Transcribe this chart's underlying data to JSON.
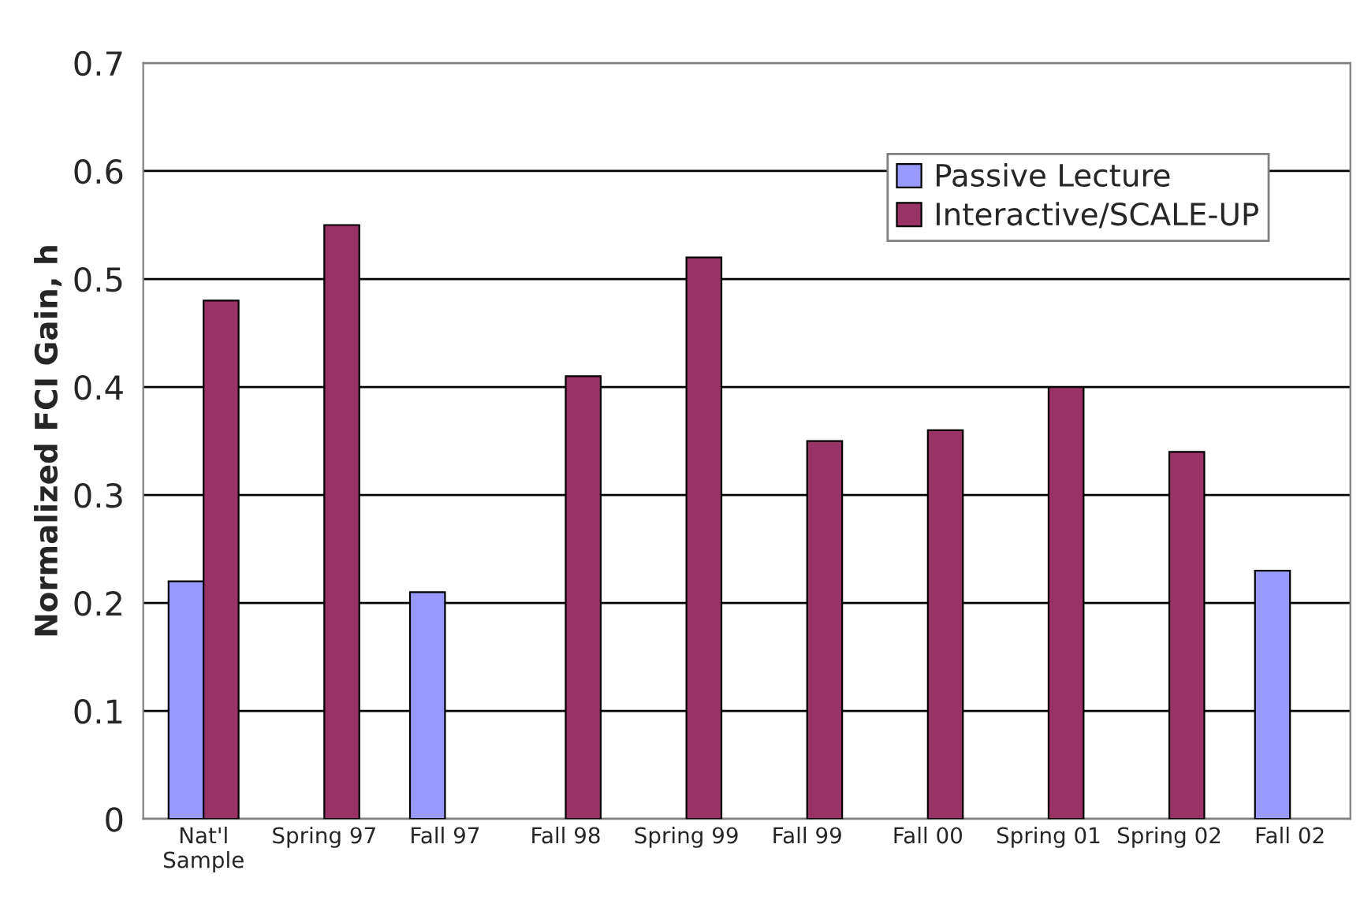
{
  "chart_data": {
    "type": "bar",
    "ylabel": "Normalized FCI Gain, h",
    "categories": [
      "Nat'l\nSample",
      "Spring 97",
      "Fall 97",
      "Fall 98",
      "Spring 99",
      "Fall 99",
      "Fall 00",
      "Spring 01",
      "Spring 02",
      "Fall 02"
    ],
    "series": [
      {
        "name": "Passive Lecture",
        "color": "#9999ff",
        "values": [
          0.22,
          null,
          0.21,
          null,
          null,
          null,
          null,
          null,
          null,
          0.23
        ]
      },
      {
        "name": "Interactive/SCALE-UP",
        "color": "#993366",
        "values": [
          0.48,
          0.55,
          null,
          0.41,
          0.52,
          0.35,
          0.36,
          0.4,
          0.34,
          null
        ]
      }
    ],
    "ylim": [
      0,
      0.7
    ],
    "yticks": [
      0,
      0.1,
      0.2,
      0.3,
      0.4,
      0.5,
      0.6,
      0.7
    ],
    "grid": "y",
    "legend": "top right"
  }
}
